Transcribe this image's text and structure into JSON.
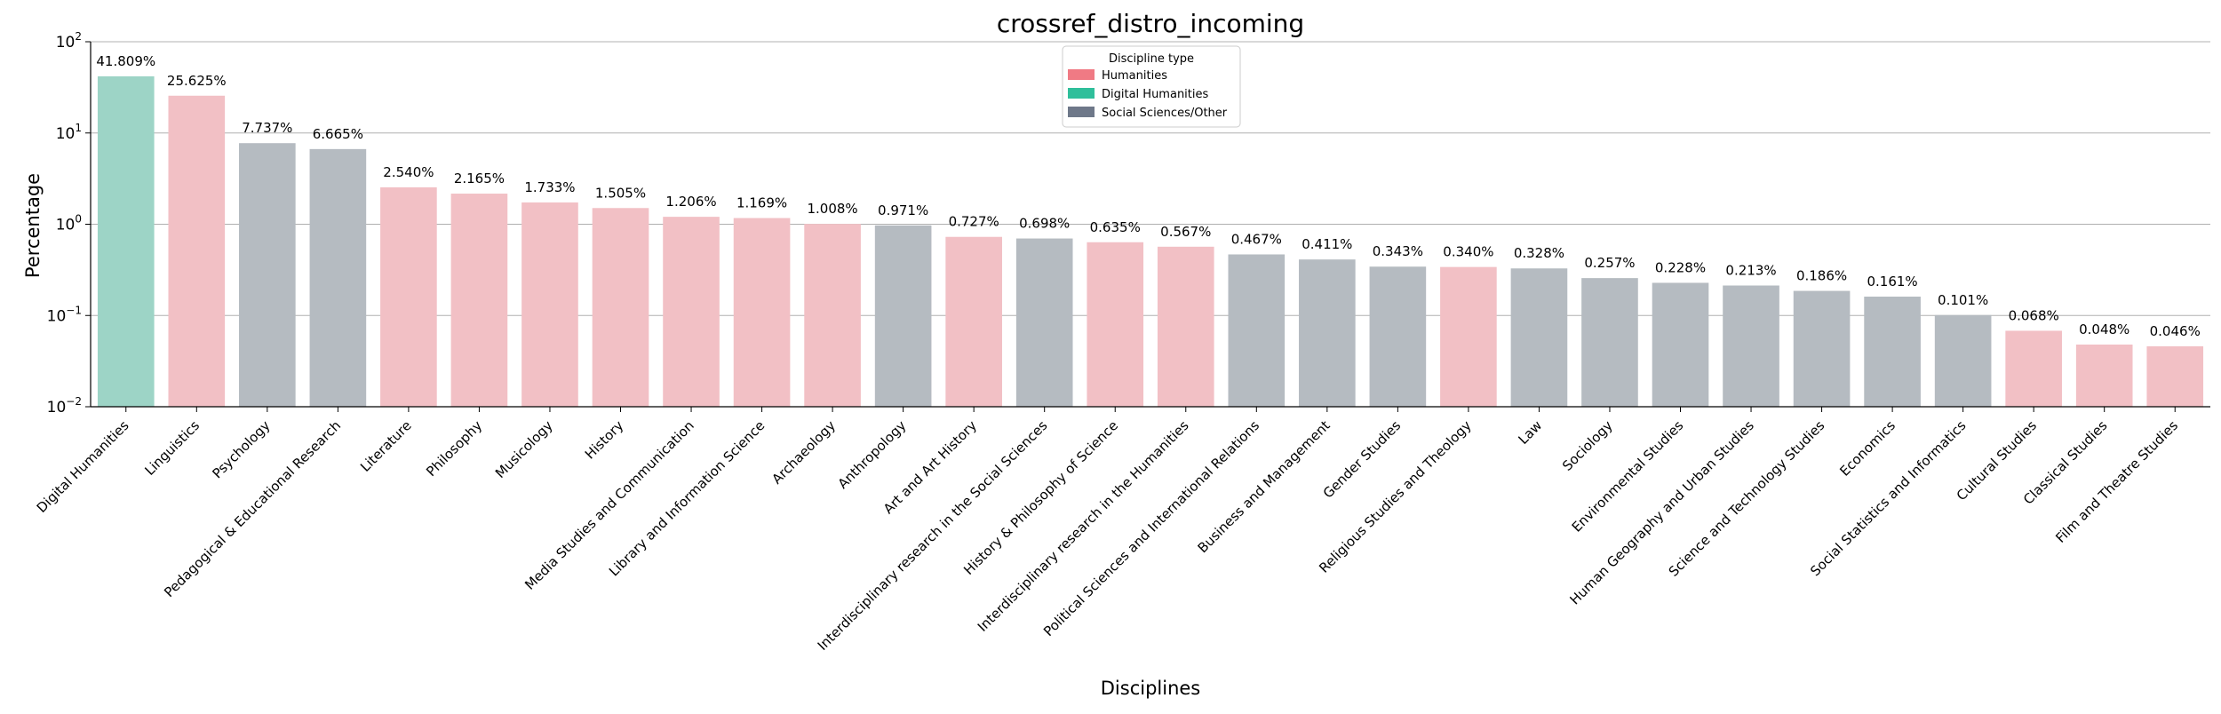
{
  "chart_data": {
    "type": "bar",
    "title": "crossref_distro_incoming",
    "xlabel": "Disciplines",
    "ylabel": "Percentage",
    "y_scale": "log",
    "ylim": [
      0.01,
      100
    ],
    "y_ticks": [
      {
        "value": 100,
        "base": "10",
        "exp": "2"
      },
      {
        "value": 10,
        "base": "10",
        "exp": "1"
      },
      {
        "value": 1,
        "base": "10",
        "exp": "0"
      },
      {
        "value": 0.1,
        "base": "10",
        "exp": "−1"
      },
      {
        "value": 0.01,
        "base": "10",
        "exp": "−2"
      }
    ],
    "grid": "horizontal",
    "legend": {
      "title": "Discipline type",
      "placement": "top-center",
      "entries": [
        {
          "label": "Humanities",
          "color": "#f07a84"
        },
        {
          "label": "Digital Humanities",
          "color": "#2fbf9b"
        },
        {
          "label": "Social Sciences/Other",
          "color": "#6e7889"
        }
      ]
    },
    "bar_colors": {
      "Humanities": "#f2c0c5",
      "Digital Humanities": "#9dd4c6",
      "Social Sciences/Other": "#b5bbc1"
    },
    "categories": [
      "Digital Humanities",
      "Linguistics",
      "Psychology",
      "Pedagogical & Educational Research",
      "Literature",
      "Philosophy",
      "Musicology",
      "History",
      "Media Studies and Communication",
      "Library and Information Science",
      "Archaeology",
      "Anthropology",
      "Art and Art History",
      "Interdisciplinary research in the Social Sciences",
      "History & Philosophy of Science",
      "Interdisciplinary research in the Humanities",
      "Political Sciences and International Relations",
      "Business and Management",
      "Gender Studies",
      "Religious Studies and Theology",
      "Law",
      "Sociology",
      "Environmental Studies",
      "Human Geography and Urban Studies",
      "Science and Technology Studies",
      "Economics",
      "Social Statistics and Informatics",
      "Cultural Studies",
      "Classical Studies",
      "Film and Theatre Studies"
    ],
    "values": [
      41.809,
      25.625,
      7.737,
      6.665,
      2.54,
      2.165,
      1.733,
      1.505,
      1.206,
      1.169,
      1.008,
      0.971,
      0.727,
      0.698,
      0.635,
      0.567,
      0.467,
      0.411,
      0.343,
      0.34,
      0.328,
      0.257,
      0.228,
      0.213,
      0.186,
      0.161,
      0.101,
      0.068,
      0.048,
      0.046
    ],
    "value_labels": [
      "41.809%",
      "25.625%",
      "7.737%",
      "6.665%",
      "2.540%",
      "2.165%",
      "1.733%",
      "1.505%",
      "1.206%",
      "1.169%",
      "1.008%",
      "0.971%",
      "0.727%",
      "0.698%",
      "0.635%",
      "0.567%",
      "0.467%",
      "0.411%",
      "0.343%",
      "0.340%",
      "0.328%",
      "0.257%",
      "0.228%",
      "0.213%",
      "0.186%",
      "0.161%",
      "0.101%",
      "0.068%",
      "0.048%",
      "0.046%"
    ],
    "types": [
      "Digital Humanities",
      "Humanities",
      "Social Sciences/Other",
      "Social Sciences/Other",
      "Humanities",
      "Humanities",
      "Humanities",
      "Humanities",
      "Humanities",
      "Humanities",
      "Humanities",
      "Social Sciences/Other",
      "Humanities",
      "Social Sciences/Other",
      "Humanities",
      "Humanities",
      "Social Sciences/Other",
      "Social Sciences/Other",
      "Social Sciences/Other",
      "Humanities",
      "Social Sciences/Other",
      "Social Sciences/Other",
      "Social Sciences/Other",
      "Social Sciences/Other",
      "Social Sciences/Other",
      "Social Sciences/Other",
      "Social Sciences/Other",
      "Humanities",
      "Humanities",
      "Humanities"
    ]
  }
}
